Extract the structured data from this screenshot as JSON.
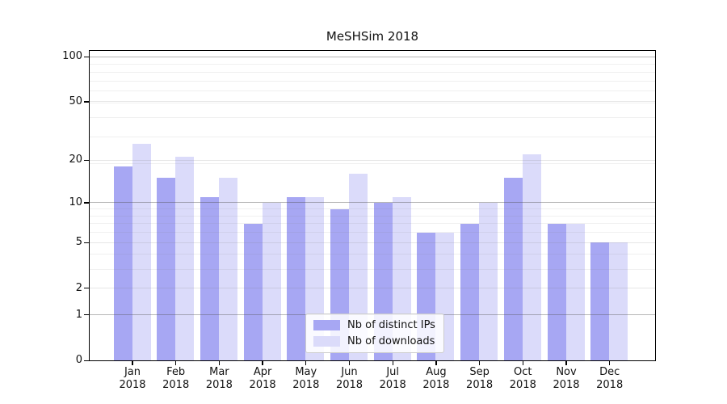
{
  "chart_data": {
    "type": "bar",
    "title": "MeSHSim 2018",
    "categories": [
      "Jan 2018",
      "Feb 2018",
      "Mar 2018",
      "Apr 2018",
      "May 2018",
      "Jun 2018",
      "Jul 2018",
      "Aug 2018",
      "Sep 2018",
      "Oct 2018",
      "Nov 2018",
      "Dec 2018"
    ],
    "month_labels": [
      "Jan",
      "Feb",
      "Mar",
      "Apr",
      "May",
      "Jun",
      "Jul",
      "Aug",
      "Sep",
      "Oct",
      "Nov",
      "Dec"
    ],
    "year_label": "2018",
    "series": [
      {
        "name": "Nb of distinct IPs",
        "color": "#a7a7f3",
        "values": [
          18,
          15,
          11,
          7,
          11,
          9,
          10,
          6,
          7,
          15,
          7,
          5
        ]
      },
      {
        "name": "Nb of downloads",
        "color": "#dbdbfa",
        "values": [
          26,
          21,
          15,
          10,
          11,
          16,
          11,
          6,
          10,
          22,
          7,
          5
        ]
      }
    ],
    "yscale": "log10(value+1)",
    "ylim": [
      0,
      110
    ],
    "yticks": [
      0,
      1,
      2,
      5,
      10,
      20,
      50,
      100
    ],
    "ytick_labels": [
      "0",
      "1",
      "2",
      "5",
      "10",
      "20",
      "50",
      "100"
    ],
    "strong_gridline_values": [
      1,
      10,
      100
    ],
    "light_gridline_values": [
      2,
      5,
      20,
      50
    ],
    "minor_gridline_values": [
      3,
      4,
      6,
      7,
      8,
      9,
      19,
      29,
      39,
      49,
      59,
      69,
      79,
      89
    ],
    "grid": true,
    "legend_position": "lower center",
    "colors": {
      "axis": "#000000",
      "grid_strong": "rgba(80,80,80,0.42)",
      "grid_light": "rgba(130,130,130,0.20)",
      "grid_minor": "rgba(130,130,130,0.12)",
      "background": "#ffffff"
    }
  }
}
